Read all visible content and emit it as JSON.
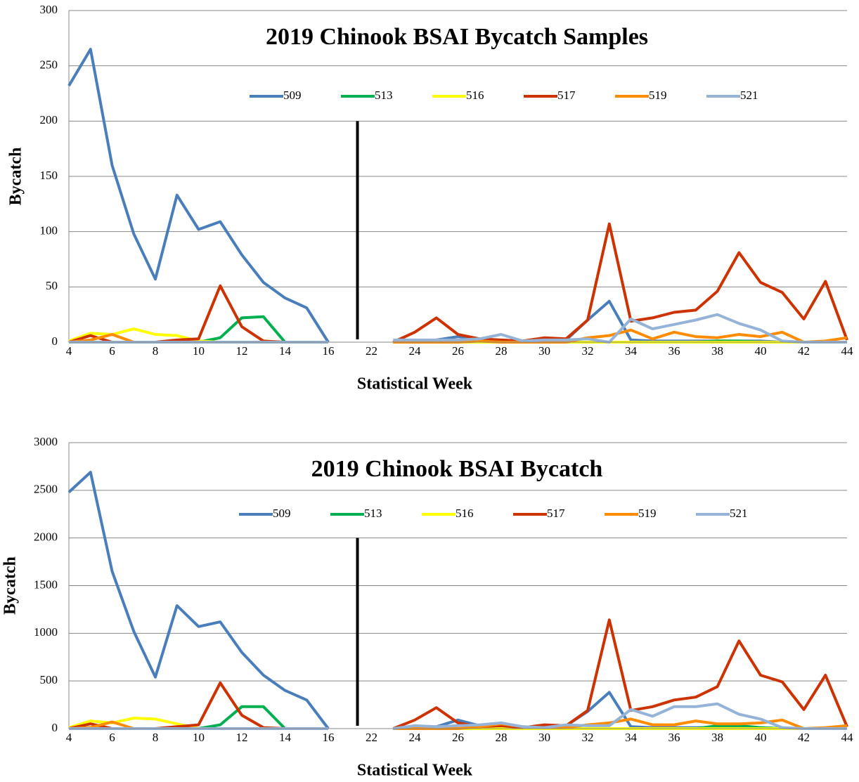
{
  "chart_data": [
    {
      "type": "line",
      "title": "2019 Chinook BSAI Bycatch Samples",
      "x_label": "Statistical Week",
      "y_label": "Bycatch",
      "categories": [
        "4",
        "5",
        "6",
        "7",
        "8",
        "9",
        "10",
        "11",
        "12",
        "13",
        "14",
        "15",
        "16",
        null,
        "22",
        "23",
        "24",
        "25",
        "26",
        "27",
        "28",
        "29",
        "30",
        "31",
        "32",
        "33",
        "34",
        "35",
        "36",
        "37",
        "38",
        "39",
        "40",
        "41",
        "42",
        "43",
        "44"
      ],
      "ylim": [
        0,
        300
      ],
      "yticks": [
        0,
        50,
        100,
        150,
        200,
        250,
        300
      ],
      "grid": true,
      "series": [
        {
          "name": "509",
          "color": "#4a7ebb",
          "values": [
            232,
            265,
            160,
            98,
            57,
            133,
            102,
            109,
            79,
            54,
            40,
            31,
            0,
            null,
            null,
            0,
            1,
            2,
            5,
            3,
            0,
            0,
            2,
            2,
            20,
            37,
            2,
            1,
            1,
            1,
            1,
            1,
            1,
            0,
            0,
            0,
            0
          ]
        },
        {
          "name": "513",
          "color": "#00b050",
          "values": [
            0,
            0,
            0,
            0,
            0,
            0,
            0,
            4,
            22,
            23,
            0,
            0,
            0,
            null,
            null,
            0,
            0,
            0,
            0,
            0,
            0,
            0,
            0,
            0,
            0,
            0,
            0,
            0,
            0,
            0,
            1,
            1,
            0,
            0,
            0,
            0,
            0
          ]
        },
        {
          "name": "516",
          "color": "#ffff00",
          "values": [
            1,
            8,
            7,
            12,
            7,
            6,
            1,
            0,
            0,
            0,
            0,
            0,
            0,
            null,
            null,
            0,
            0,
            0,
            0,
            0,
            0,
            0,
            0,
            0,
            0,
            0,
            0,
            0,
            0,
            0,
            0,
            0,
            0,
            0,
            0,
            0,
            0
          ]
        },
        {
          "name": "517",
          "color": "#cc3300",
          "values": [
            0,
            6,
            0,
            0,
            0,
            2,
            3,
            51,
            14,
            1,
            0,
            0,
            0,
            null,
            null,
            0,
            9,
            22,
            7,
            3,
            2,
            1,
            4,
            3,
            20,
            107,
            19,
            22,
            27,
            29,
            46,
            81,
            54,
            45,
            21,
            55,
            2
          ]
        },
        {
          "name": "519",
          "color": "#ff8c00",
          "values": [
            0,
            2,
            7,
            0,
            0,
            0,
            0,
            0,
            0,
            0,
            0,
            0,
            0,
            null,
            null,
            0,
            0,
            0,
            0,
            1,
            0,
            0,
            0,
            0,
            4,
            6,
            11,
            3,
            9,
            5,
            4,
            7,
            5,
            9,
            0,
            1,
            4
          ]
        },
        {
          "name": "521",
          "color": "#95b3d7",
          "values": [
            0,
            0,
            0,
            0,
            0,
            0,
            0,
            0,
            0,
            0,
            0,
            0,
            0,
            null,
            null,
            2,
            2,
            2,
            2,
            3,
            7,
            1,
            2,
            2,
            3,
            0,
            21,
            12,
            16,
            20,
            25,
            17,
            11,
            1,
            0,
            0,
            0
          ]
        }
      ]
    },
    {
      "type": "line",
      "title": "2019 Chinook BSAI Bycatch",
      "x_label": "Statistical Week",
      "y_label": "Bycatch",
      "categories": [
        "4",
        "5",
        "6",
        "7",
        "8",
        "9",
        "10",
        "11",
        "12",
        "13",
        "14",
        "15",
        "16",
        null,
        "22",
        "23",
        "24",
        "25",
        "26",
        "27",
        "28",
        "29",
        "30",
        "31",
        "32",
        "33",
        "34",
        "35",
        "36",
        "37",
        "38",
        "39",
        "40",
        "41",
        "42",
        "43",
        "44"
      ],
      "ylim": [
        0,
        3000
      ],
      "yticks": [
        0,
        500,
        1000,
        1500,
        2000,
        2500,
        3000
      ],
      "grid": true,
      "series": [
        {
          "name": "509",
          "color": "#4a7ebb",
          "values": [
            2480,
            2690,
            1650,
            1020,
            540,
            1290,
            1070,
            1120,
            800,
            560,
            400,
            300,
            0,
            null,
            null,
            0,
            10,
            20,
            90,
            30,
            20,
            10,
            20,
            30,
            180,
            380,
            20,
            10,
            10,
            10,
            10,
            10,
            10,
            0,
            0,
            0,
            0
          ]
        },
        {
          "name": "513",
          "color": "#00b050",
          "values": [
            0,
            0,
            0,
            0,
            0,
            0,
            0,
            40,
            230,
            230,
            0,
            0,
            0,
            null,
            null,
            0,
            0,
            0,
            0,
            0,
            0,
            0,
            0,
            0,
            0,
            0,
            0,
            0,
            0,
            0,
            30,
            30,
            10,
            0,
            0,
            0,
            0
          ]
        },
        {
          "name": "516",
          "color": "#ffff00",
          "values": [
            10,
            80,
            60,
            110,
            100,
            50,
            0,
            0,
            0,
            0,
            0,
            0,
            0,
            null,
            null,
            0,
            0,
            0,
            0,
            0,
            0,
            0,
            0,
            0,
            0,
            0,
            0,
            0,
            0,
            0,
            0,
            0,
            0,
            0,
            0,
            0,
            0
          ]
        },
        {
          "name": "517",
          "color": "#cc3300",
          "values": [
            0,
            50,
            0,
            0,
            0,
            20,
            40,
            480,
            140,
            10,
            0,
            0,
            0,
            null,
            null,
            0,
            90,
            220,
            60,
            20,
            30,
            10,
            40,
            30,
            190,
            1140,
            190,
            230,
            300,
            330,
            440,
            920,
            560,
            490,
            200,
            560,
            20
          ]
        },
        {
          "name": "519",
          "color": "#ff8c00",
          "values": [
            0,
            10,
            70,
            0,
            0,
            0,
            0,
            0,
            0,
            0,
            0,
            0,
            0,
            null,
            null,
            0,
            0,
            0,
            0,
            20,
            50,
            20,
            10,
            10,
            40,
            60,
            100,
            40,
            40,
            80,
            50,
            50,
            60,
            90,
            0,
            10,
            30
          ]
        },
        {
          "name": "521",
          "color": "#95b3d7",
          "values": [
            0,
            0,
            0,
            0,
            0,
            0,
            0,
            0,
            0,
            0,
            0,
            0,
            0,
            null,
            null,
            0,
            30,
            20,
            30,
            40,
            60,
            20,
            10,
            40,
            30,
            30,
            200,
            130,
            230,
            230,
            260,
            150,
            100,
            10,
            0,
            0,
            0
          ]
        }
      ]
    }
  ]
}
